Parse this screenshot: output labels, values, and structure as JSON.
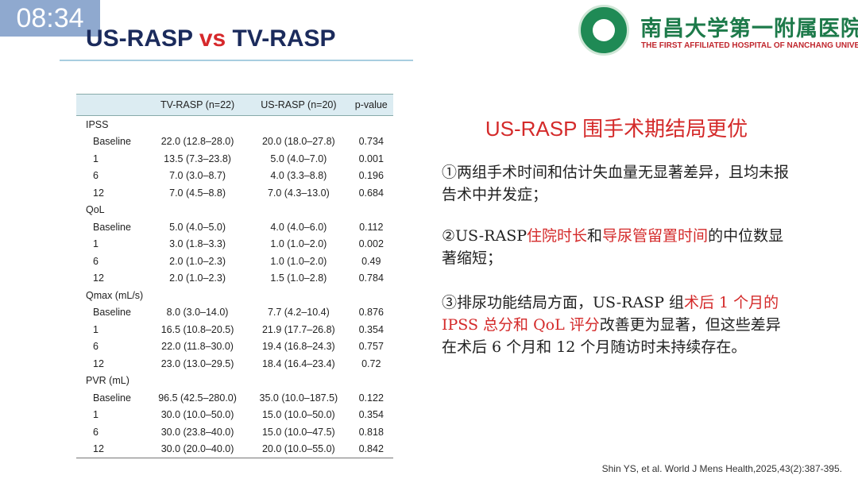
{
  "clock": "08:34",
  "title": [
    "US-RASP",
    "vs",
    "TV-RASP"
  ],
  "logo": {
    "name": "南昌大学第一附属医院",
    "english": "THE FIRST AFFILIATED HOSPITAL OF NANCHANG UNIVERSITY"
  },
  "table": {
    "header": [
      "TV-RASP (n=22)",
      "US-RASP (n=20)",
      "p-value"
    ],
    "rows": [
      [
        "IPSS"
      ],
      [
        "Baseline",
        "22.0 (12.8–28.0)",
        "20.0 (18.0–27.8)",
        "0.734"
      ],
      [
        "1",
        "13.5 (7.3–23.8)",
        "5.0 (4.0–7.0)",
        "0.001"
      ],
      [
        "6",
        "7.0 (3.0–8.7)",
        "4.0 (3.3–8.8)",
        "0.196"
      ],
      [
        "12",
        "7.0 (4.5–8.8)",
        "7.0 (4.3–13.0)",
        "0.684"
      ],
      [
        "QoL"
      ],
      [
        "Baseline",
        "5.0 (4.0–5.0)",
        "4.0 (4.0–6.0)",
        "0.112"
      ],
      [
        "1",
        "3.0 (1.8–3.3)",
        "1.0 (1.0–2.0)",
        "0.002"
      ],
      [
        "6",
        "2.0 (1.0–2.3)",
        "1.0 (1.0–2.0)",
        "0.49"
      ],
      [
        "12",
        "2.0 (1.0–2.3)",
        "1.5 (1.0–2.8)",
        "0.784"
      ],
      [
        "Qmax (mL/s)"
      ],
      [
        "Baseline",
        "8.0 (3.0–14.0)",
        "7.7 (4.2–10.4)",
        "0.876"
      ],
      [
        "1",
        "16.5 (10.8–20.5)",
        "21.9 (17.7–26.8)",
        "0.354"
      ],
      [
        "6",
        "22.0 (11.8–30.0)",
        "19.4 (16.8–24.3)",
        "0.757"
      ],
      [
        "12",
        "23.0 (13.0–29.5)",
        "18.4 (16.4–23.4)",
        "0.72"
      ],
      [
        "PVR (mL)"
      ],
      [
        "Baseline",
        "96.5 (42.5–280.0)",
        "35.0 (10.0–187.5)",
        "0.122"
      ],
      [
        "1",
        "30.0 (10.0–50.0)",
        "15.0 (10.0–50.0)",
        "0.354"
      ],
      [
        "6",
        "30.0 (23.8–40.0)",
        "15.0 (10.0–47.5)",
        "0.818"
      ],
      [
        "12",
        "30.0 (20.0–40.0)",
        "20.0 (10.0–55.0)",
        "0.842"
      ]
    ]
  },
  "heading": "US-RASP 围手术期结局更优",
  "paragraphs": [
    [
      {
        "text": "①两组手术时间和估计失血量无显著差异，且均未报告术中并发症；",
        "red": false
      }
    ],
    [
      {
        "text": "②US-RASP",
        "red": false
      },
      {
        "text": "住院时长",
        "red": true
      },
      {
        "text": "和",
        "red": false
      },
      {
        "text": "导尿管留置时间",
        "red": true
      },
      {
        "text": "的中位数显著缩短；",
        "red": false
      }
    ],
    [
      {
        "text": "③排尿功能结局方面，US-RASP 组",
        "red": false
      },
      {
        "text": "术后 1 个月的 IPSS 总分和 QoL 评分",
        "red": true
      },
      {
        "text": "改善更为显著，但这些差异在术后 6 个月和 12 个月随访时未持续存在。",
        "red": false
      }
    ]
  ],
  "citation": "Shin YS, et al. World J Mens Health,2025,43(2):387-395."
}
